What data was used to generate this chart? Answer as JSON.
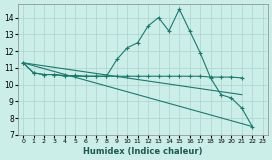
{
  "xlabel": "Humidex (Indice chaleur)",
  "bg_color": "#cceee8",
  "grid_color": "#aad4cc",
  "line_color": "#1a7a6e",
  "xlim": [
    -0.5,
    23.5
  ],
  "ylim": [
    7,
    14.8
  ],
  "xticks": [
    0,
    1,
    2,
    3,
    4,
    5,
    6,
    7,
    8,
    9,
    10,
    11,
    12,
    13,
    14,
    15,
    16,
    17,
    18,
    19,
    20,
    21,
    22,
    23
  ],
  "yticks": [
    7,
    8,
    9,
    10,
    11,
    12,
    13,
    14
  ],
  "series1_x": [
    0,
    1,
    2,
    3,
    4,
    5,
    6,
    7,
    8,
    9,
    10,
    11,
    12,
    13,
    14,
    15,
    16,
    17,
    18,
    19,
    20,
    21,
    22
  ],
  "series1_y": [
    11.3,
    10.7,
    10.6,
    10.6,
    10.5,
    10.55,
    10.5,
    10.5,
    10.5,
    11.5,
    12.2,
    12.5,
    13.5,
    14.0,
    13.2,
    14.5,
    13.2,
    11.9,
    10.4,
    9.4,
    9.2,
    8.6,
    7.5
  ],
  "series2_x": [
    0,
    1,
    2,
    3,
    4,
    5,
    6,
    7,
    8,
    9,
    10,
    11,
    12,
    13,
    14,
    15,
    16,
    17,
    18,
    19,
    20,
    21
  ],
  "series2_y": [
    11.3,
    10.7,
    10.6,
    10.6,
    10.55,
    10.5,
    10.5,
    10.5,
    10.5,
    10.5,
    10.5,
    10.5,
    10.5,
    10.5,
    10.5,
    10.5,
    10.5,
    10.5,
    10.45,
    10.45,
    10.45,
    10.4
  ],
  "series3_x": [
    0,
    22
  ],
  "series3_y": [
    11.3,
    7.5
  ],
  "series4_x": [
    0,
    21
  ],
  "series4_y": [
    11.3,
    9.4
  ]
}
